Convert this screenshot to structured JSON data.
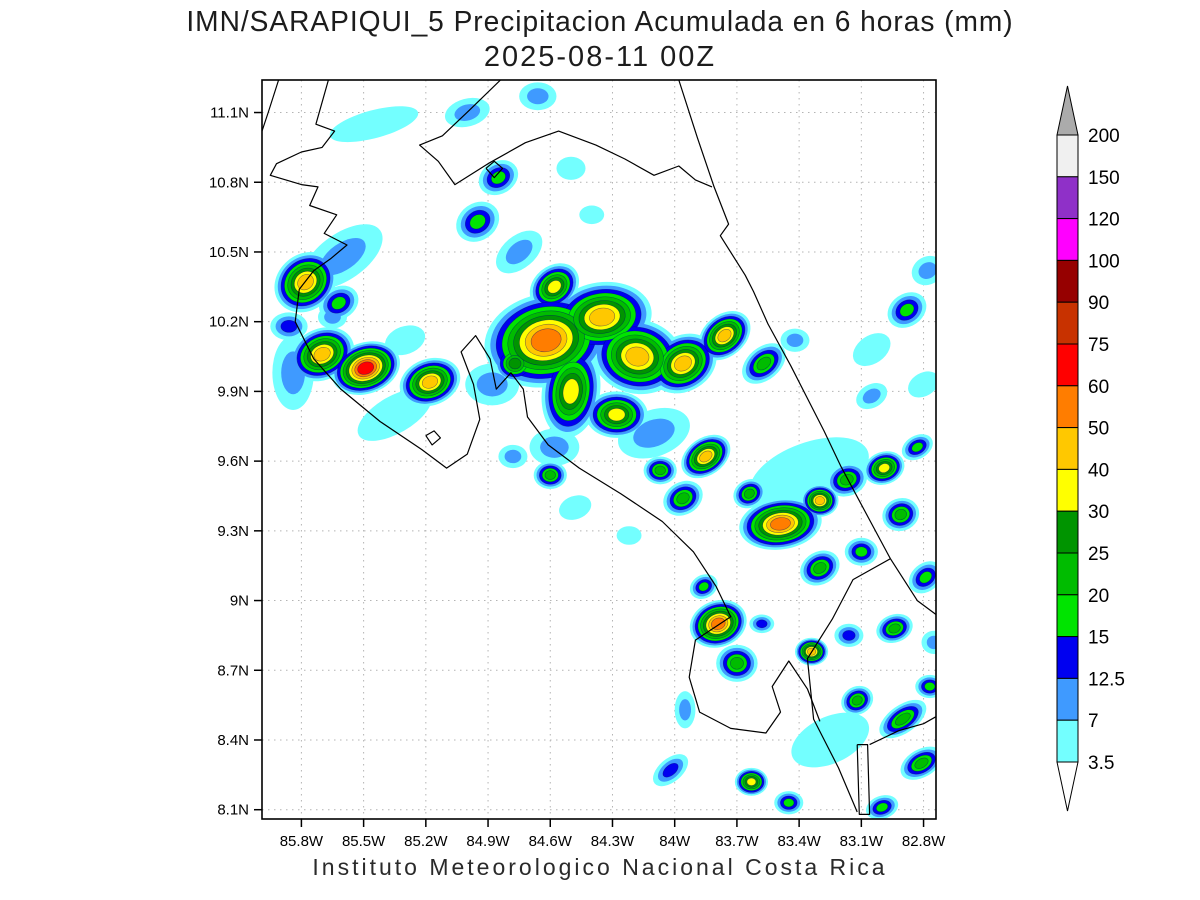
{
  "title": {
    "line1": "IMN/SARAPIQUI_5 Precipitacion Acumulada en 6 horas (mm)",
    "line2": "2025-08-11 00Z"
  },
  "footer": {
    "text": "Instituto Meteorologico Nacional Costa Rica"
  },
  "axes": {
    "lat_ticks": [
      {
        "value": 11.1,
        "label": "11.1N"
      },
      {
        "value": 10.8,
        "label": "10.8N"
      },
      {
        "value": 10.5,
        "label": "10.5N"
      },
      {
        "value": 10.2,
        "label": "10.2N"
      },
      {
        "value": 9.9,
        "label": "9.9N"
      },
      {
        "value": 9.6,
        "label": "9.6N"
      },
      {
        "value": 9.3,
        "label": "9.3N"
      },
      {
        "value": 9.0,
        "label": "9N"
      },
      {
        "value": 8.7,
        "label": "8.7N"
      },
      {
        "value": 8.4,
        "label": "8.4N"
      },
      {
        "value": 8.1,
        "label": "8.1N"
      }
    ],
    "lon_ticks": [
      {
        "value": 85.8,
        "label": "85.8W"
      },
      {
        "value": 85.5,
        "label": "85.5W"
      },
      {
        "value": 85.2,
        "label": "85.2W"
      },
      {
        "value": 84.9,
        "label": "84.9W"
      },
      {
        "value": 84.6,
        "label": "84.6W"
      },
      {
        "value": 84.3,
        "label": "84.3W"
      },
      {
        "value": 84.0,
        "label": "84W"
      },
      {
        "value": 83.7,
        "label": "83.7W"
      },
      {
        "value": 83.4,
        "label": "83.4W"
      },
      {
        "value": 83.1,
        "label": "83.1W"
      },
      {
        "value": 82.8,
        "label": "82.8W"
      }
    ]
  },
  "colorbar": {
    "boundary_labels": [
      "200",
      "150",
      "120",
      "100",
      "90",
      "75",
      "60",
      "50",
      "40",
      "30",
      "25",
      "20",
      "15",
      "12.5",
      "7",
      "3.5"
    ],
    "band_colors_top_to_bottom": [
      "#f0f0f0",
      "#8f30c8",
      "#ff00ff",
      "#960000",
      "#c83200",
      "#ff0000",
      "#ff7d00",
      "#ffc800",
      "#ffff00",
      "#009400",
      "#00bc00",
      "#00e400",
      "#0000f0",
      "#3f9aff",
      "#73ffff"
    ],
    "over_arrow_color": "#ababab",
    "under_arrow_color": "#ffffff"
  },
  "map": {
    "domain": {
      "lon_west": 85.99,
      "lon_east": 82.74,
      "lat_north": 11.24,
      "lat_south": 8.06
    },
    "grid_color": "#b4b4b4",
    "coastline_color": "#000000",
    "coastlines": [
      [
        [
          85.91,
          11.24
        ],
        [
          85.96,
          11.1
        ],
        [
          85.99,
          11.02
        ]
      ],
      [
        [
          85.67,
          11.24
        ],
        [
          85.73,
          11.05
        ],
        [
          85.64,
          11.02
        ],
        [
          85.7,
          10.95
        ],
        [
          85.8,
          10.93
        ],
        [
          85.92,
          10.88
        ],
        [
          85.95,
          10.83
        ],
        [
          85.8,
          10.79
        ],
        [
          85.72,
          10.78
        ],
        [
          85.76,
          10.7
        ],
        [
          85.63,
          10.66
        ],
        [
          85.69,
          10.58
        ],
        [
          85.58,
          10.53
        ],
        [
          85.66,
          10.47
        ],
        [
          85.74,
          10.42
        ],
        [
          85.81,
          10.34
        ],
        [
          85.83,
          10.2
        ],
        [
          85.74,
          10.04
        ],
        [
          85.61,
          9.91
        ],
        [
          85.42,
          9.77
        ],
        [
          85.22,
          9.65
        ],
        [
          85.1,
          9.57
        ],
        [
          85.0,
          9.63
        ],
        [
          84.94,
          9.78
        ],
        [
          84.97,
          9.93
        ],
        [
          85.03,
          10.07
        ],
        [
          84.96,
          10.14
        ],
        [
          84.89,
          10.04
        ],
        [
          84.86,
          9.91
        ],
        [
          84.79,
          9.98
        ],
        [
          84.73,
          9.91
        ],
        [
          84.71,
          9.79
        ],
        [
          84.61,
          9.67
        ],
        [
          84.46,
          9.57
        ],
        [
          84.26,
          9.46
        ],
        [
          84.06,
          9.34
        ],
        [
          83.91,
          9.21
        ],
        [
          83.8,
          9.06
        ],
        [
          83.73,
          8.93
        ],
        [
          83.9,
          8.83
        ],
        [
          83.93,
          8.67
        ],
        [
          83.88,
          8.52
        ],
        [
          83.73,
          8.45
        ],
        [
          83.56,
          8.43
        ],
        [
          83.49,
          8.52
        ],
        [
          83.53,
          8.63
        ],
        [
          83.45,
          8.74
        ],
        [
          83.36,
          8.62
        ],
        [
          83.3,
          8.48
        ]
      ],
      [
        [
          84.84,
          11.24
        ],
        [
          84.99,
          11.11
        ],
        [
          85.12,
          11.0
        ],
        [
          85.23,
          10.96
        ],
        [
          85.14,
          10.89
        ],
        [
          85.06,
          10.79
        ],
        [
          84.9,
          10.88
        ],
        [
          84.72,
          10.97
        ],
        [
          84.56,
          11.02
        ],
        [
          84.38,
          10.96
        ],
        [
          84.24,
          10.9
        ],
        [
          84.1,
          10.83
        ],
        [
          83.98,
          10.87
        ],
        [
          83.9,
          10.81
        ],
        [
          83.82,
          10.78
        ]
      ],
      [
        [
          83.98,
          11.24
        ],
        [
          83.89,
          10.99
        ],
        [
          83.81,
          10.78
        ],
        [
          83.74,
          10.62
        ],
        [
          83.78,
          10.57
        ],
        [
          83.66,
          10.4
        ],
        [
          83.62,
          10.33
        ],
        [
          83.55,
          10.19
        ],
        [
          83.44,
          10.01
        ],
        [
          83.28,
          9.73
        ],
        [
          83.2,
          9.58
        ],
        [
          83.05,
          9.33
        ],
        [
          82.96,
          9.18
        ],
        [
          82.83,
          9.0
        ],
        [
          82.74,
          8.94
        ]
      ],
      [
        [
          82.96,
          9.18
        ],
        [
          83.14,
          9.09
        ],
        [
          83.24,
          8.92
        ],
        [
          83.36,
          8.75
        ],
        [
          83.33,
          8.49
        ],
        [
          83.21,
          8.28
        ],
        [
          83.12,
          8.09
        ]
      ],
      [
        [
          83.12,
          8.38
        ],
        [
          83.07,
          8.38
        ],
        [
          83.06,
          8.08
        ],
        [
          83.11,
          8.08
        ],
        [
          83.12,
          8.38
        ]
      ],
      [
        [
          83.06,
          8.38
        ],
        [
          82.92,
          8.44
        ],
        [
          82.8,
          8.47
        ],
        [
          82.74,
          8.5
        ]
      ],
      [
        [
          84.91,
          10.86
        ],
        [
          84.87,
          10.89
        ],
        [
          84.83,
          10.86
        ],
        [
          84.87,
          10.82
        ],
        [
          84.91,
          10.86
        ]
      ],
      [
        [
          85.2,
          9.71
        ],
        [
          85.16,
          9.73
        ],
        [
          85.13,
          9.7
        ],
        [
          85.17,
          9.67
        ],
        [
          85.2,
          9.71
        ]
      ]
    ]
  },
  "chart_data": {
    "type": "heatmap",
    "description": "Filled-contour accumulated 6h precipitation (mm) over Costa Rica",
    "units": "mm",
    "levels_mm": [
      3.5,
      7,
      12.5,
      15,
      20,
      25,
      30,
      40,
      50,
      60,
      75,
      90,
      100,
      120,
      150,
      200
    ],
    "cells_format": [
      "lon_w",
      "lat",
      "rx_deg",
      "ry_deg",
      "rot_deg",
      "bands_reached"
    ],
    "cells": [
      [
        85.78,
        10.37,
        0.16,
        0.12,
        -40,
        8
      ],
      [
        85.62,
        10.28,
        0.1,
        0.07,
        -30,
        4
      ],
      [
        85.86,
        10.18,
        0.09,
        0.06,
        0,
        3
      ],
      [
        85.7,
        10.06,
        0.16,
        0.11,
        -25,
        8
      ],
      [
        85.49,
        10.0,
        0.17,
        0.11,
        -20,
        10
      ],
      [
        85.18,
        9.94,
        0.15,
        0.1,
        -20,
        8
      ],
      [
        85.65,
        10.22,
        0.07,
        0.05,
        0,
        2
      ],
      [
        85.6,
        10.48,
        0.22,
        0.1,
        -35,
        2
      ],
      [
        85.35,
        9.8,
        0.2,
        0.08,
        -30,
        1
      ],
      [
        85.84,
        9.98,
        0.1,
        0.16,
        0,
        2
      ],
      [
        85.3,
        10.12,
        0.1,
        0.06,
        -20,
        1
      ],
      [
        85.45,
        11.05,
        0.22,
        0.06,
        -15,
        1
      ],
      [
        85.0,
        11.1,
        0.11,
        0.06,
        -15,
        2
      ],
      [
        84.66,
        11.17,
        0.09,
        0.06,
        0,
        2
      ],
      [
        84.85,
        10.82,
        0.1,
        0.07,
        -30,
        4
      ],
      [
        84.95,
        10.63,
        0.11,
        0.08,
        -35,
        4
      ],
      [
        84.5,
        10.86,
        0.07,
        0.05,
        0,
        1
      ],
      [
        84.4,
        10.66,
        0.06,
        0.04,
        0,
        1
      ],
      [
        84.75,
        10.5,
        0.13,
        0.07,
        -40,
        2
      ],
      [
        84.58,
        10.35,
        0.13,
        0.09,
        -40,
        7
      ],
      [
        84.62,
        10.12,
        0.3,
        0.2,
        -12,
        9
      ],
      [
        84.35,
        10.22,
        0.24,
        0.15,
        -8,
        8
      ],
      [
        84.18,
        10.05,
        0.22,
        0.16,
        12,
        8
      ],
      [
        84.5,
        9.9,
        0.14,
        0.2,
        8,
        7
      ],
      [
        84.28,
        9.8,
        0.15,
        0.1,
        0,
        7
      ],
      [
        83.96,
        10.02,
        0.17,
        0.12,
        -30,
        8
      ],
      [
        84.77,
        10.02,
        0.1,
        0.08,
        0,
        6
      ],
      [
        84.88,
        9.93,
        0.13,
        0.09,
        0,
        2
      ],
      [
        84.1,
        9.72,
        0.18,
        0.1,
        -20,
        2
      ],
      [
        84.58,
        9.66,
        0.12,
        0.08,
        0,
        2
      ],
      [
        83.76,
        10.14,
        0.14,
        0.09,
        -40,
        8
      ],
      [
        83.57,
        10.02,
        0.12,
        0.07,
        -40,
        5
      ],
      [
        83.42,
        10.12,
        0.07,
        0.05,
        0,
        2
      ],
      [
        83.85,
        9.62,
        0.13,
        0.08,
        -35,
        8
      ],
      [
        83.96,
        9.44,
        0.1,
        0.07,
        -30,
        5
      ],
      [
        84.07,
        9.56,
        0.08,
        0.06,
        0,
        5
      ],
      [
        84.78,
        9.62,
        0.07,
        0.05,
        0,
        2
      ],
      [
        84.6,
        9.54,
        0.08,
        0.06,
        0,
        5
      ],
      [
        84.48,
        9.4,
        0.08,
        0.05,
        -20,
        1
      ],
      [
        84.22,
        9.28,
        0.06,
        0.04,
        0,
        1
      ],
      [
        83.49,
        9.33,
        0.2,
        0.11,
        -8,
        9
      ],
      [
        83.3,
        9.43,
        0.09,
        0.07,
        0,
        8
      ],
      [
        83.64,
        9.46,
        0.08,
        0.06,
        -30,
        5
      ],
      [
        83.17,
        9.52,
        0.1,
        0.07,
        -20,
        5
      ],
      [
        82.99,
        9.57,
        0.1,
        0.07,
        -20,
        7
      ],
      [
        82.83,
        9.66,
        0.08,
        0.05,
        -30,
        4
      ],
      [
        83.3,
        9.14,
        0.1,
        0.07,
        -30,
        5
      ],
      [
        83.1,
        9.21,
        0.08,
        0.06,
        0,
        4
      ],
      [
        82.91,
        9.37,
        0.09,
        0.07,
        -20,
        5
      ],
      [
        82.79,
        9.1,
        0.09,
        0.06,
        -40,
        4
      ],
      [
        83.35,
        9.55,
        0.3,
        0.13,
        -20,
        1
      ],
      [
        82.8,
        9.93,
        0.08,
        0.05,
        -30,
        1
      ],
      [
        83.05,
        9.88,
        0.08,
        0.05,
        -30,
        2
      ],
      [
        82.88,
        10.25,
        0.1,
        0.07,
        -35,
        4
      ],
      [
        82.78,
        10.42,
        0.08,
        0.06,
        -30,
        2
      ],
      [
        83.05,
        10.08,
        0.1,
        0.06,
        -35,
        1
      ],
      [
        83.79,
        8.9,
        0.14,
        0.1,
        -20,
        9
      ],
      [
        83.7,
        8.73,
        0.1,
        0.08,
        0,
        5
      ],
      [
        83.86,
        9.06,
        0.07,
        0.05,
        -30,
        4
      ],
      [
        83.58,
        8.9,
        0.06,
        0.04,
        0,
        3
      ],
      [
        83.95,
        8.53,
        0.05,
        0.08,
        0,
        2
      ],
      [
        84.02,
        8.27,
        0.1,
        0.05,
        -40,
        3
      ],
      [
        83.63,
        8.22,
        0.08,
        0.06,
        0,
        7
      ],
      [
        83.45,
        8.13,
        0.07,
        0.05,
        0,
        4
      ],
      [
        83.34,
        8.78,
        0.08,
        0.06,
        0,
        8
      ],
      [
        83.16,
        8.85,
        0.07,
        0.05,
        0,
        3
      ],
      [
        82.94,
        8.88,
        0.09,
        0.06,
        -20,
        5
      ],
      [
        83.12,
        8.57,
        0.08,
        0.06,
        -30,
        5
      ],
      [
        82.9,
        8.49,
        0.13,
        0.06,
        -35,
        5
      ],
      [
        82.77,
        8.63,
        0.07,
        0.05,
        0,
        4
      ],
      [
        82.75,
        8.82,
        0.06,
        0.05,
        0,
        2
      ],
      [
        82.81,
        8.3,
        0.11,
        0.06,
        -30,
        5
      ],
      [
        83.0,
        8.11,
        0.08,
        0.05,
        -20,
        4
      ],
      [
        83.25,
        8.4,
        0.2,
        0.1,
        -25,
        1
      ]
    ]
  }
}
